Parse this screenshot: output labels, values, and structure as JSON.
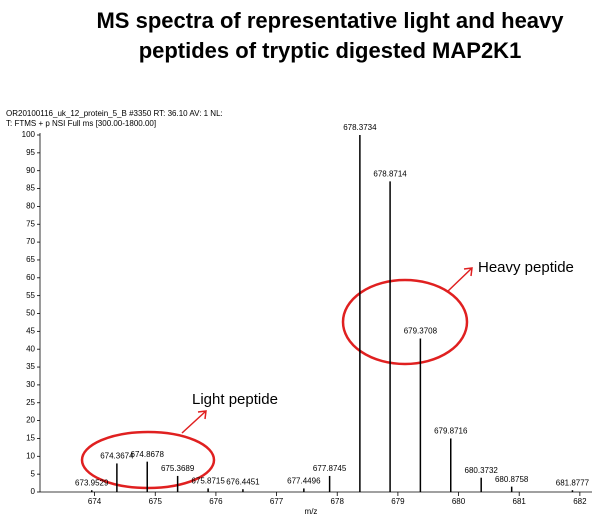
{
  "chart_data": {
    "type": "stem",
    "title": "MS spectra of representative light and heavy",
    "subtitle": "peptides of tryptic digested MAP2K1",
    "header": [
      "OR20100116_uk_12_protein_5_B #3350  RT: 36.10  AV: 1  NL:",
      "T: FTMS + p NSI Full ms [300.00-1800.00]"
    ],
    "x_label": "m/z",
    "annotations": [
      "Light peptide",
      "Heavy peptide"
    ],
    "x": [
      673.9529,
      674.3674,
      674.8678,
      675.3689,
      675.8715,
      676.4451,
      677.4496,
      677.8745,
      678.3734,
      678.8714,
      679.3708,
      679.8716,
      680.3732,
      680.8758,
      681.8777
    ],
    "values": [
      0.5,
      8,
      8.5,
      4.5,
      1,
      0.8,
      1,
      4.5,
      100,
      87,
      43,
      15,
      4,
      1.5,
      0.5
    ],
    "color": "#000000",
    "xlim": [
      673.1,
      682.2
    ],
    "ylim": [
      0,
      100
    ],
    "xticks": [
      674,
      675,
      676,
      677,
      678,
      679,
      680,
      681,
      682
    ],
    "yticks": [
      0,
      5,
      10,
      15,
      20,
      25,
      30,
      35,
      40,
      45,
      50,
      55,
      60,
      65,
      70,
      75,
      80,
      85,
      90,
      95,
      100
    ]
  }
}
